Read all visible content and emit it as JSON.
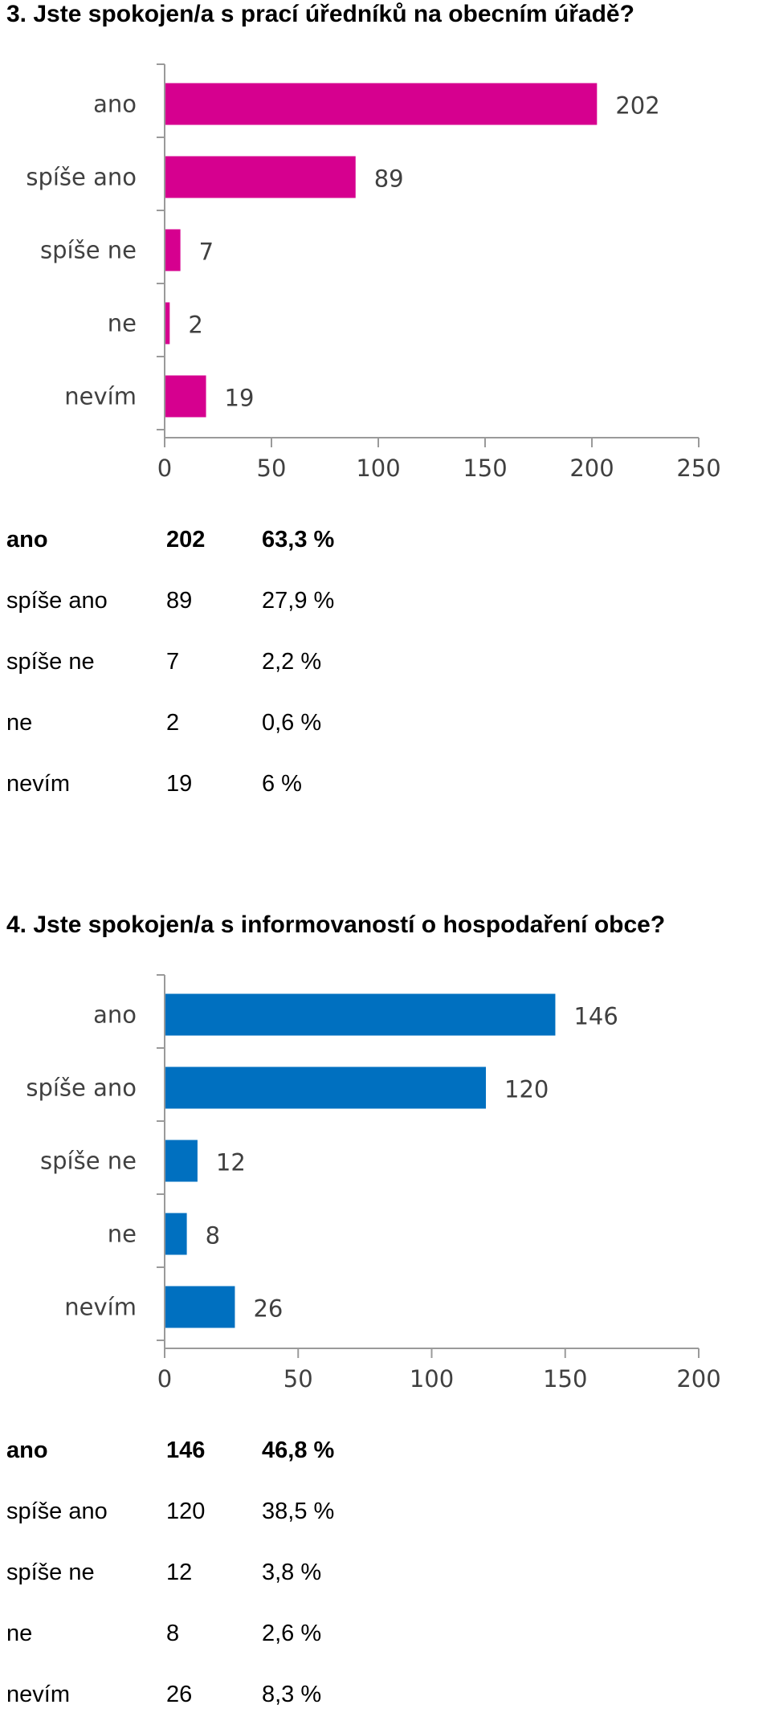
{
  "sections": [
    {
      "title": "3. Jste spokojen/a s prací úředníků na obecním úřadě?",
      "rows": [
        {
          "label": "ano",
          "count": "202",
          "percent": "63,3 %"
        },
        {
          "label": "spíše ano",
          "count": "89",
          "percent": "27,9 %"
        },
        {
          "label": "spíše ne",
          "count": "7",
          "percent": "2,2 %"
        },
        {
          "label": "ne",
          "count": "2",
          "percent": "0,6 %"
        },
        {
          "label": "nevím",
          "count": "19",
          "percent": "6 %"
        }
      ]
    },
    {
      "title": "4. Jste spokojen/a s informovaností o hospodaření obce?",
      "rows": [
        {
          "label": "ano",
          "count": "146",
          "percent": "46,8 %"
        },
        {
          "label": "spíše ano",
          "count": "120",
          "percent": "38,5 %"
        },
        {
          "label": "spíše ne",
          "count": "12",
          "percent": "3,8 %"
        },
        {
          "label": "ne",
          "count": "8",
          "percent": "2,6 %"
        },
        {
          "label": "nevím",
          "count": "26",
          "percent": "8,3 %"
        }
      ]
    }
  ],
  "chart_data": [
    {
      "type": "bar",
      "orientation": "horizontal",
      "title": "",
      "categories": [
        "ano",
        "spíše ano",
        "spíše ne",
        "ne",
        "nevím"
      ],
      "values": [
        202,
        89,
        7,
        2,
        19
      ],
      "xlim": [
        0,
        250
      ],
      "ticks": [
        0,
        50,
        100,
        150,
        200,
        250
      ],
      "color": "#d6008f",
      "grid": false,
      "data_labels": true
    },
    {
      "type": "bar",
      "orientation": "horizontal",
      "title": "",
      "categories": [
        "ano",
        "spíše ano",
        "spíše ne",
        "ne",
        "nevím"
      ],
      "values": [
        146,
        120,
        12,
        8,
        26
      ],
      "xlim": [
        0,
        200
      ],
      "ticks": [
        0,
        50,
        100,
        150,
        200
      ],
      "color": "#0070c0",
      "grid": false,
      "data_labels": true
    }
  ]
}
